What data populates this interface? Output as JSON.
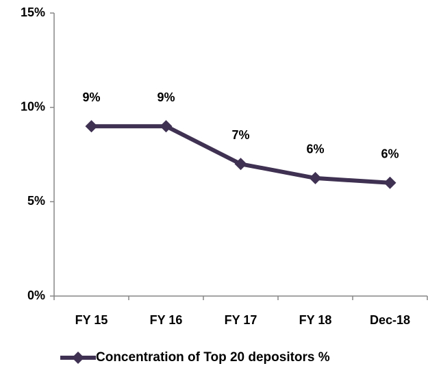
{
  "chart_data": {
    "type": "line",
    "categories": [
      "FY 15",
      "FY 16",
      "FY 17",
      "FY 18",
      "Dec-18"
    ],
    "series": [
      {
        "name": "Concentration of Top 20 depositors %",
        "color": "#3f3151",
        "values": [
          9,
          9,
          7,
          6.25,
          6
        ],
        "value_labels": [
          "9%",
          "9%",
          "7%",
          "6%",
          "6%"
        ]
      }
    ],
    "ylim": [
      0,
      15
    ],
    "yticks": [
      {
        "value": 0,
        "label": "0%"
      },
      {
        "value": 5,
        "label": "5%"
      },
      {
        "value": 10,
        "label": "10%"
      },
      {
        "value": 15,
        "label": "15%"
      }
    ],
    "grid": false,
    "legend": "bottom"
  }
}
